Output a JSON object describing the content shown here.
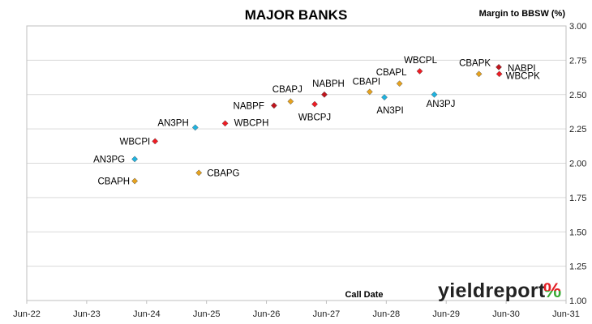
{
  "chart_data": {
    "type": "scatter",
    "title": "MAJOR BANKS",
    "xlabel": "Call Date",
    "ylabel": "Margin to BBSW (%)",
    "xlim": [
      "2022-06-01",
      "2031-06-01"
    ],
    "ylim": [
      1.0,
      3.0
    ],
    "x_ticks": [
      "Jun-22",
      "Jun-23",
      "Jun-24",
      "Jun-25",
      "Jun-26",
      "Jun-27",
      "Jun-28",
      "Jun-29",
      "Jun-30",
      "Jun-31"
    ],
    "y_ticks": [
      "1.00",
      "1.25",
      "1.50",
      "1.75",
      "2.00",
      "2.25",
      "2.50",
      "2.75",
      "3.00"
    ],
    "grid": true,
    "colors": {
      "ANZ": "#1fb3e0",
      "CBA": "#e6a21e",
      "NAB": "#c0141c",
      "WBC": "#ee1c24"
    },
    "points": [
      {
        "label": "CBAPH",
        "date": "2024-03-20",
        "margin": 1.87,
        "issuer": "CBA"
      },
      {
        "label": "AN3PG",
        "date": "2024-03-20",
        "margin": 2.03,
        "issuer": "ANZ"
      },
      {
        "label": "WBCPI",
        "date": "2024-07-22",
        "margin": 2.16,
        "issuer": "WBC"
      },
      {
        "label": "CBAPG",
        "date": "2025-04-15",
        "margin": 1.93,
        "issuer": "CBA"
      },
      {
        "label": "AN3PH",
        "date": "2025-03-24",
        "margin": 2.26,
        "issuer": "ANZ"
      },
      {
        "label": "WBCPH",
        "date": "2025-09-22",
        "margin": 2.29,
        "issuer": "WBC"
      },
      {
        "label": "NABPF",
        "date": "2026-07-17",
        "margin": 2.42,
        "issuer": "NAB"
      },
      {
        "label": "CBAPJ",
        "date": "2026-10-26",
        "margin": 2.45,
        "issuer": "CBA"
      },
      {
        "label": "WBCPJ",
        "date": "2027-03-22",
        "margin": 2.43,
        "issuer": "WBC"
      },
      {
        "label": "NABPH",
        "date": "2027-05-20",
        "margin": 2.5,
        "issuer": "NAB"
      },
      {
        "label": "CBAPI",
        "date": "2028-02-20",
        "margin": 2.52,
        "issuer": "CBA"
      },
      {
        "label": "AN3PI",
        "date": "2028-05-20",
        "margin": 2.48,
        "issuer": "ANZ"
      },
      {
        "label": "CBAPL",
        "date": "2028-08-20",
        "margin": 2.58,
        "issuer": "CBA"
      },
      {
        "label": "WBCPL",
        "date": "2028-12-21",
        "margin": 2.67,
        "issuer": "WBC"
      },
      {
        "label": "AN3PJ",
        "date": "2029-03-20",
        "margin": 2.5,
        "issuer": "ANZ"
      },
      {
        "label": "CBAPK",
        "date": "2029-12-17",
        "margin": 2.65,
        "issuer": "CBA"
      },
      {
        "label": "NABPI",
        "date": "2030-04-17",
        "margin": 2.7,
        "issuer": "NAB"
      },
      {
        "label": "WBCPK",
        "date": "2030-04-20",
        "margin": 2.65,
        "issuer": "WBC"
      }
    ]
  },
  "brand": {
    "name": "yieldreport",
    "symbol": "%",
    "colors": {
      "text": "#222222",
      "symbol_top": "#e31e24",
      "symbol_bottom": "#3aaa35"
    }
  }
}
